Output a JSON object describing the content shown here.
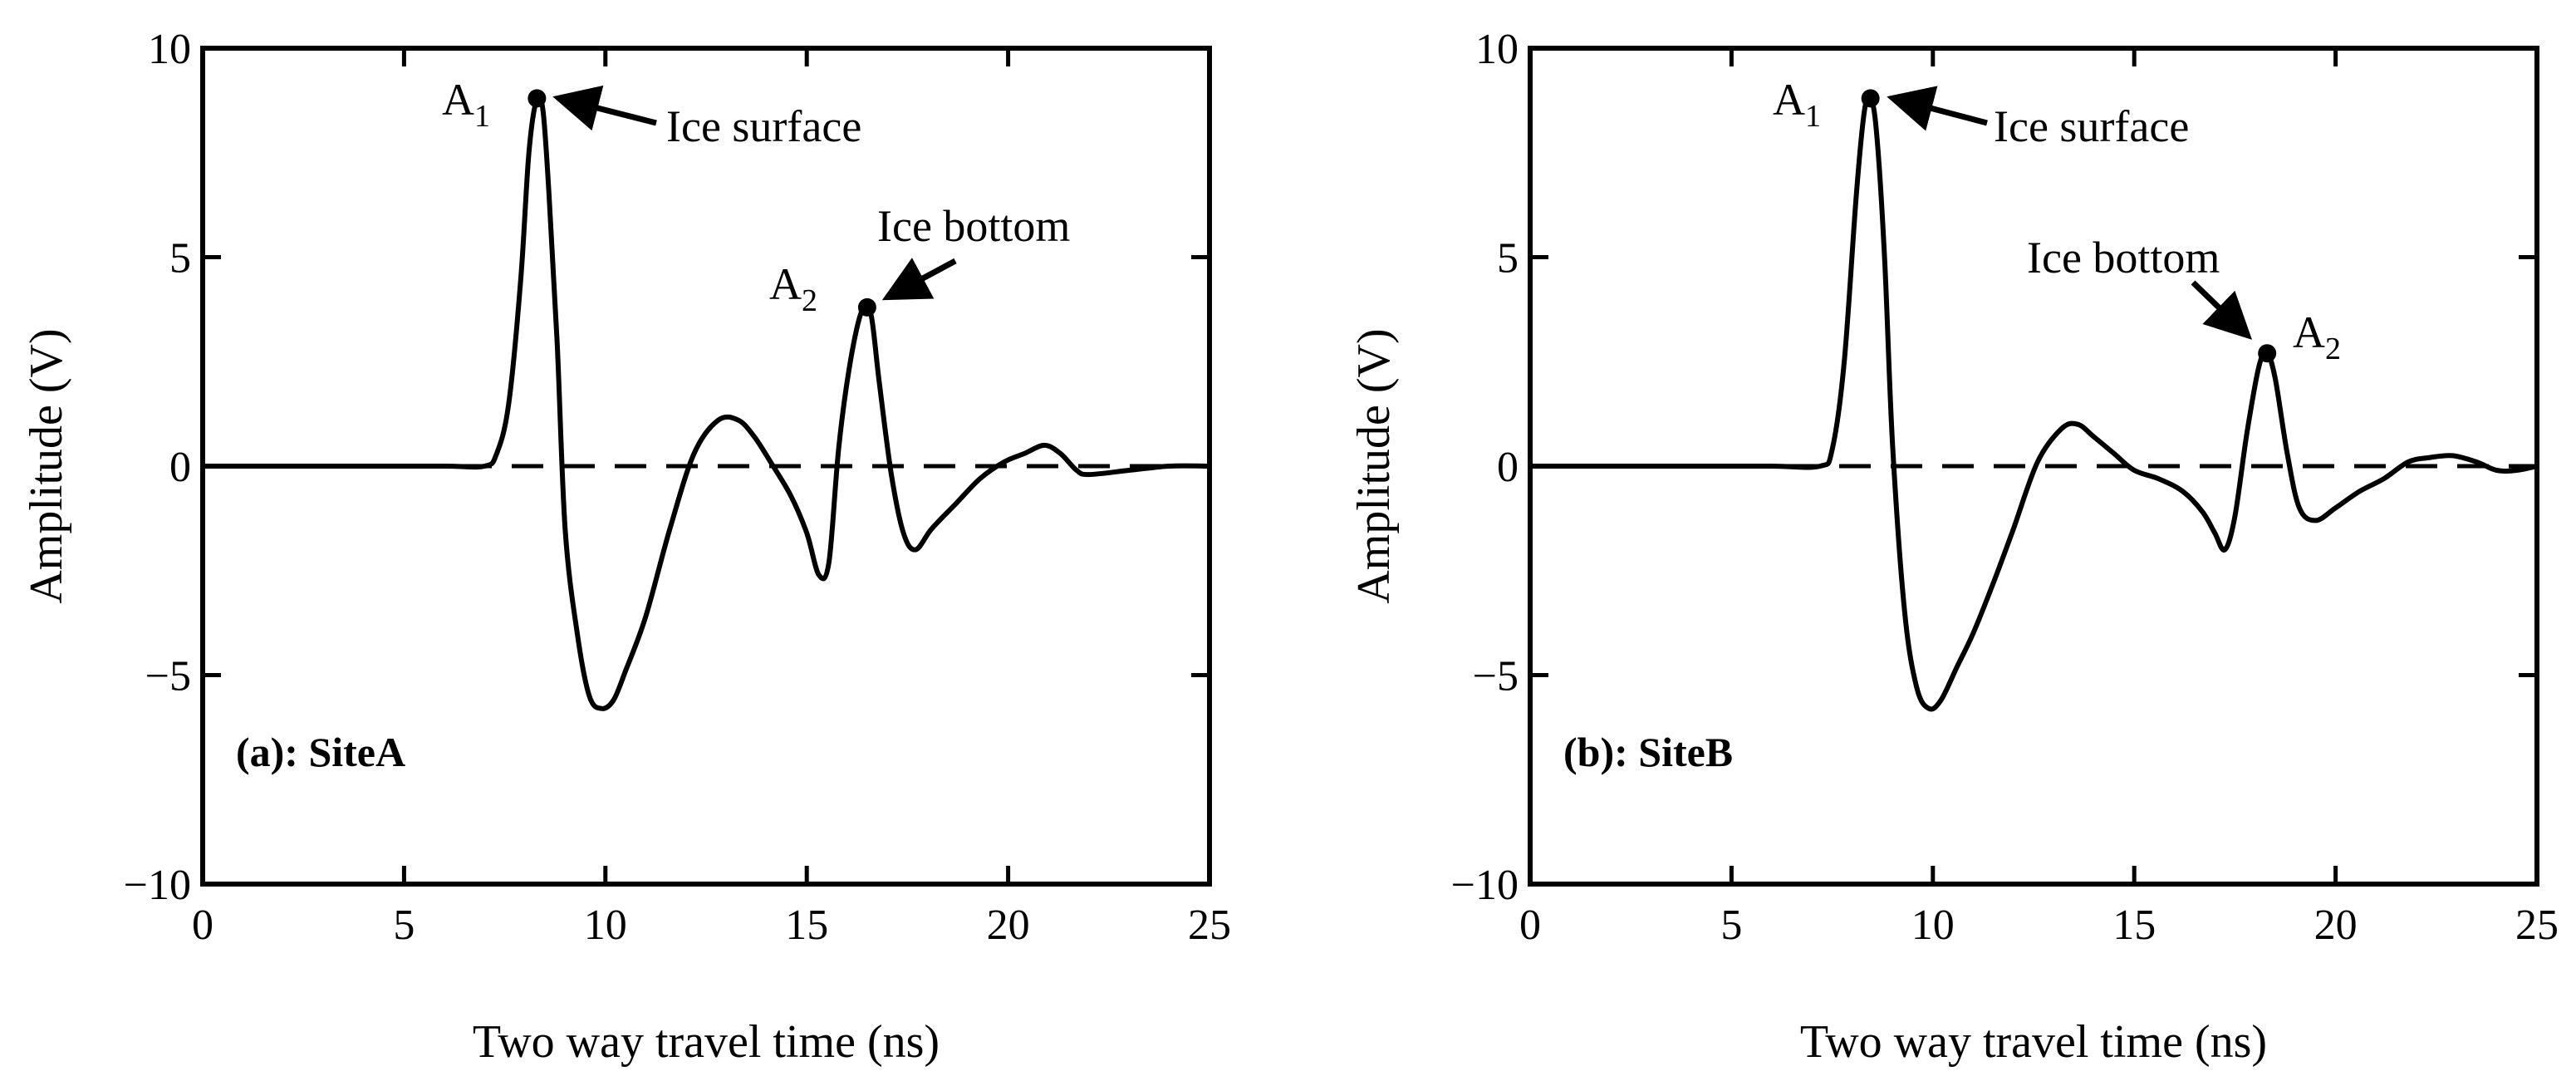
{
  "chart_data": [
    {
      "type": "line",
      "panel_label": "(a): SiteA",
      "xlabel": "Two way travel time (ns)",
      "ylabel": "Amplitude (V)",
      "xlim": [
        0,
        25
      ],
      "ylim": [
        -10,
        10
      ],
      "xticks": [
        0,
        5,
        10,
        15,
        20,
        25
      ],
      "yticks": [
        -10,
        -5,
        0,
        5,
        10
      ],
      "xtick_labels": [
        "0",
        "5",
        "10",
        "15",
        "20",
        "25"
      ],
      "ytick_labels": [
        "−10",
        "−5",
        "0",
        "5",
        "10"
      ],
      "baseline": {
        "y": 0,
        "style": "dashed"
      },
      "series": [
        {
          "name": "signal",
          "x": [
            0,
            2,
            4,
            6,
            7,
            7.3,
            7.6,
            7.9,
            8.1,
            8.3,
            8.45,
            8.6,
            8.8,
            9.0,
            9.3,
            9.6,
            9.9,
            10.2,
            10.5,
            11.0,
            11.6,
            12.2,
            12.8,
            13.3,
            13.7,
            14.1,
            14.6,
            15.0,
            15.3,
            15.55,
            15.8,
            16.1,
            16.4,
            16.6,
            16.8,
            17.1,
            17.4,
            17.7,
            18.1,
            18.7,
            19.3,
            19.9,
            20.4,
            20.9,
            21.3,
            21.7,
            22.0,
            23.0,
            24.0,
            25.0
          ],
          "y": [
            0,
            0,
            0,
            0,
            0,
            0.3,
            1.5,
            4.5,
            7.5,
            8.8,
            8.5,
            6.5,
            3.0,
            -1.5,
            -4.0,
            -5.5,
            -5.8,
            -5.6,
            -4.9,
            -3.6,
            -1.5,
            0.3,
            1.1,
            1.1,
            0.7,
            0.1,
            -0.7,
            -1.6,
            -2.6,
            -2.3,
            0.5,
            2.6,
            3.8,
            3.6,
            2.0,
            -0.2,
            -1.6,
            -2.0,
            -1.5,
            -0.9,
            -0.3,
            0.1,
            0.3,
            0.5,
            0.3,
            -0.1,
            -0.2,
            -0.1,
            0,
            0
          ]
        }
      ],
      "markers": [
        {
          "label": "A",
          "sub": "1",
          "x": 8.3,
          "y": 8.8,
          "annotation": "Ice surface"
        },
        {
          "label": "A",
          "sub": "2",
          "x": 16.5,
          "y": 3.8,
          "annotation": "Ice bottom"
        }
      ]
    },
    {
      "type": "line",
      "panel_label": "(b): SiteB",
      "xlabel": "Two way travel time (ns)",
      "ylabel": "Amplitude (V)",
      "xlim": [
        0,
        25
      ],
      "ylim": [
        -10,
        10
      ],
      "xticks": [
        0,
        5,
        10,
        15,
        20,
        25
      ],
      "yticks": [
        -10,
        -5,
        0,
        5,
        10
      ],
      "xtick_labels": [
        "0",
        "5",
        "10",
        "15",
        "20",
        "25"
      ],
      "ytick_labels": [
        "−10",
        "−5",
        "0",
        "5",
        "10"
      ],
      "baseline": {
        "y": 0,
        "style": "dashed"
      },
      "series": [
        {
          "name": "signal",
          "x": [
            0,
            2,
            4,
            6,
            7.2,
            7.5,
            7.8,
            8.1,
            8.3,
            8.45,
            8.6,
            8.8,
            9.0,
            9.3,
            9.6,
            9.9,
            10.2,
            10.6,
            11.0,
            11.5,
            12.0,
            12.6,
            13.2,
            13.6,
            14.0,
            14.5,
            15.0,
            15.6,
            16.2,
            16.7,
            17.0,
            17.25,
            17.5,
            17.8,
            18.1,
            18.3,
            18.5,
            18.8,
            19.1,
            19.5,
            20.0,
            20.6,
            21.2,
            21.8,
            22.3,
            22.9,
            23.5,
            24.0,
            24.5,
            25.0
          ],
          "y": [
            0,
            0,
            0,
            0,
            0,
            0.4,
            2.5,
            6.5,
            8.5,
            8.8,
            8.0,
            5.0,
            0.5,
            -3.5,
            -5.3,
            -5.8,
            -5.6,
            -4.8,
            -4.0,
            -2.8,
            -1.5,
            0.1,
            0.9,
            1.0,
            0.7,
            0.3,
            -0.1,
            -0.3,
            -0.6,
            -1.1,
            -1.6,
            -2.0,
            -1.2,
            0.8,
            2.4,
            2.7,
            2.1,
            0.3,
            -1.0,
            -1.3,
            -1.0,
            -0.6,
            -0.3,
            0.1,
            0.2,
            0.25,
            0.1,
            -0.1,
            -0.1,
            0
          ]
        }
      ],
      "markers": [
        {
          "label": "A",
          "sub": "1",
          "x": 8.45,
          "y": 8.8,
          "annotation": "Ice surface"
        },
        {
          "label": "A",
          "sub": "2",
          "x": 18.3,
          "y": 2.7,
          "annotation": "Ice bottom"
        }
      ]
    }
  ]
}
